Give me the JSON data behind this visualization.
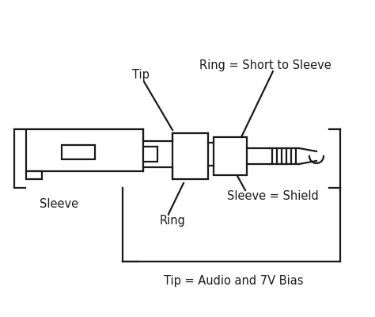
{
  "bg_color": "#ffffff",
  "line_color": "#1a1a1a",
  "text_color": "#1a1a1a",
  "lw": 1.6,
  "labels": {
    "tip_label": "Tip",
    "ring_label": "Ring",
    "sleeve_label": "Sleeve",
    "ring_eq": "Ring = Short to Sleeve",
    "sleeve_eq": "Sleeve = Shield",
    "tip_eq": "Tip = Audio and 7V Bias"
  },
  "figsize": [
    4.74,
    4.0
  ],
  "dpi": 100
}
